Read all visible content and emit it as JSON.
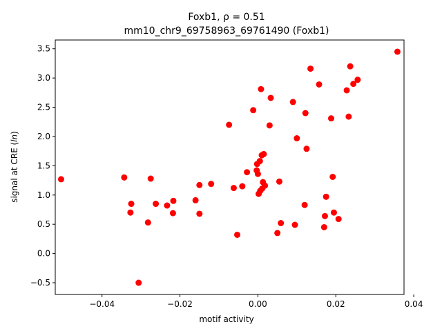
{
  "chart_data": {
    "type": "scatter",
    "title_line1": "Foxb1, ρ = 0.51",
    "title_line2": "mm10_chr9_69758963_69761490 (Foxb1)",
    "xlabel": "motif activity",
    "ylabel_prefix": "signal at CRE (",
    "ylabel_italic": "ln",
    "ylabel_suffix": ")",
    "xlim": [
      -0.052,
      0.0375
    ],
    "ylim": [
      -0.7,
      3.65
    ],
    "xticks": [
      -0.04,
      -0.02,
      0.0,
      0.02,
      0.04
    ],
    "xtick_labels": [
      "−0.04",
      "−0.02",
      "0.00",
      "0.02",
      "0.04"
    ],
    "yticks": [
      -0.5,
      0.0,
      0.5,
      1.0,
      1.5,
      2.0,
      2.5,
      3.0,
      3.5
    ],
    "ytick_labels": [
      "−0.5",
      "0.0",
      "0.5",
      "1.0",
      "1.5",
      "2.0",
      "2.5",
      "3.0",
      "3.5"
    ],
    "marker_color": "#ff0000",
    "points": [
      {
        "x": -0.0505,
        "y": 1.27
      },
      {
        "x": -0.0343,
        "y": 1.3
      },
      {
        "x": -0.0325,
        "y": 0.85
      },
      {
        "x": -0.0327,
        "y": 0.7
      },
      {
        "x": -0.0306,
        "y": -0.5
      },
      {
        "x": -0.0282,
        "y": 0.53
      },
      {
        "x": -0.0275,
        "y": 1.28
      },
      {
        "x": -0.0262,
        "y": 0.85
      },
      {
        "x": -0.0233,
        "y": 0.82
      },
      {
        "x": -0.0217,
        "y": 0.9
      },
      {
        "x": -0.0218,
        "y": 0.69
      },
      {
        "x": -0.016,
        "y": 0.91
      },
      {
        "x": -0.015,
        "y": 1.17
      },
      {
        "x": -0.015,
        "y": 0.68
      },
      {
        "x": -0.012,
        "y": 1.19
      },
      {
        "x": -0.0074,
        "y": 2.2
      },
      {
        "x": -0.0062,
        "y": 1.12
      },
      {
        "x": -0.0053,
        "y": 0.32
      },
      {
        "x": -0.004,
        "y": 1.15
      },
      {
        "x": -0.0028,
        "y": 1.39
      },
      {
        "x": -0.0012,
        "y": 2.45
      },
      {
        "x": -0.0003,
        "y": 1.42
      },
      {
        "x": -0.0002,
        "y": 1.53
      },
      {
        "x": 0.0,
        "y": 1.36
      },
      {
        "x": 0.0002,
        "y": 1.02
      },
      {
        "x": 0.0005,
        "y": 1.58
      },
      {
        "x": 0.0006,
        "y": 1.07
      },
      {
        "x": 0.0008,
        "y": 2.81
      },
      {
        "x": 0.001,
        "y": 1.68
      },
      {
        "x": 0.0011,
        "y": 1.11
      },
      {
        "x": 0.0013,
        "y": 1.22
      },
      {
        "x": 0.0015,
        "y": 1.7
      },
      {
        "x": 0.0018,
        "y": 1.16
      },
      {
        "x": 0.003,
        "y": 2.19
      },
      {
        "x": 0.0033,
        "y": 2.66
      },
      {
        "x": 0.005,
        "y": 0.35
      },
      {
        "x": 0.0055,
        "y": 1.23
      },
      {
        "x": 0.0059,
        "y": 0.52
      },
      {
        "x": 0.009,
        "y": 2.59
      },
      {
        "x": 0.0095,
        "y": 0.49
      },
      {
        "x": 0.01,
        "y": 1.97
      },
      {
        "x": 0.012,
        "y": 0.83
      },
      {
        "x": 0.0122,
        "y": 2.4
      },
      {
        "x": 0.0125,
        "y": 1.79
      },
      {
        "x": 0.0135,
        "y": 3.16
      },
      {
        "x": 0.0157,
        "y": 2.89
      },
      {
        "x": 0.017,
        "y": 0.45
      },
      {
        "x": 0.0172,
        "y": 0.64
      },
      {
        "x": 0.0175,
        "y": 0.97
      },
      {
        "x": 0.0188,
        "y": 2.31
      },
      {
        "x": 0.0192,
        "y": 1.31
      },
      {
        "x": 0.0195,
        "y": 0.7
      },
      {
        "x": 0.0207,
        "y": 0.59
      },
      {
        "x": 0.0228,
        "y": 2.79
      },
      {
        "x": 0.0233,
        "y": 2.34
      },
      {
        "x": 0.0237,
        "y": 3.2
      },
      {
        "x": 0.0245,
        "y": 2.9
      },
      {
        "x": 0.0256,
        "y": 2.97
      },
      {
        "x": 0.0358,
        "y": 3.45
      }
    ]
  }
}
